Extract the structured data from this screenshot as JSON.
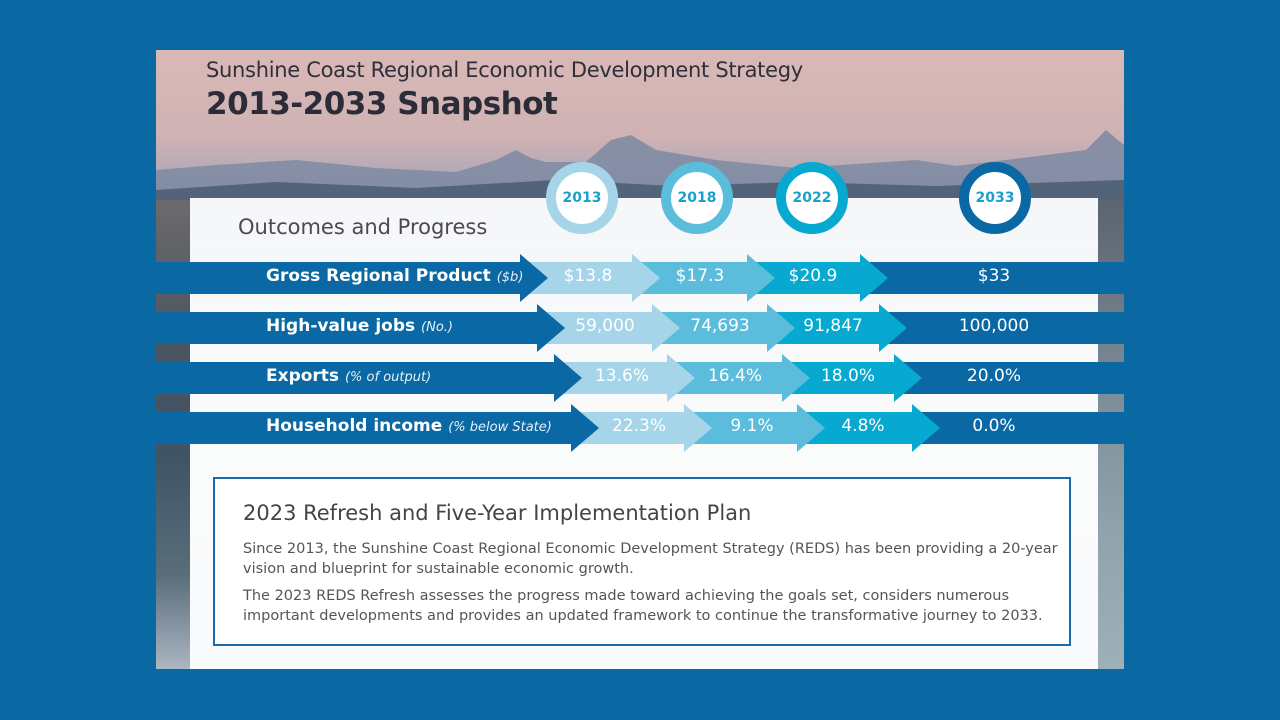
{
  "header": {
    "subtitle": "Sunshine Coast Regional Economic Development Strategy",
    "title": "2013-2033 Snapshot"
  },
  "section_title": "Outcomes and Progress",
  "colors": {
    "background": "#0a69a3",
    "dark_arrow": "#0a68a4",
    "year_2013": "#a6d5ea",
    "year_2018": "#5bbcdb",
    "year_2022": "#07a9d1",
    "year_2033": "#0a68a4"
  },
  "years": [
    "2013",
    "2018",
    "2022",
    "2033"
  ],
  "metrics": [
    {
      "label": "Gross Regional Product",
      "unit": "($b)",
      "values": [
        "$13.8",
        "$17.3",
        "$20.9",
        "$33"
      ]
    },
    {
      "label": "High-value jobs",
      "unit": "(No.)",
      "values": [
        "59,000",
        "74,693",
        "91,847",
        "100,000"
      ]
    },
    {
      "label": "Exports",
      "unit": "(% of output)",
      "values": [
        "13.6%",
        "16.4%",
        "18.0%",
        "20.0%"
      ]
    },
    {
      "label": "Household income",
      "unit": "(% below State)",
      "values": [
        "22.3%",
        "9.1%",
        "4.8%",
        "0.0%"
      ]
    }
  ],
  "refresh": {
    "title": "2023 Refresh and Five-Year Implementation Plan",
    "paragraph1": "Since 2013, the Sunshine Coast Regional Economic Development Strategy (REDS) has been providing a 20-year vision and blueprint for sustainable economic growth.",
    "paragraph2": "The 2023 REDS Refresh assesses the progress made toward achieving the goals set, considers numerous important developments and provides an updated framework to continue the transformative journey to 2033."
  }
}
